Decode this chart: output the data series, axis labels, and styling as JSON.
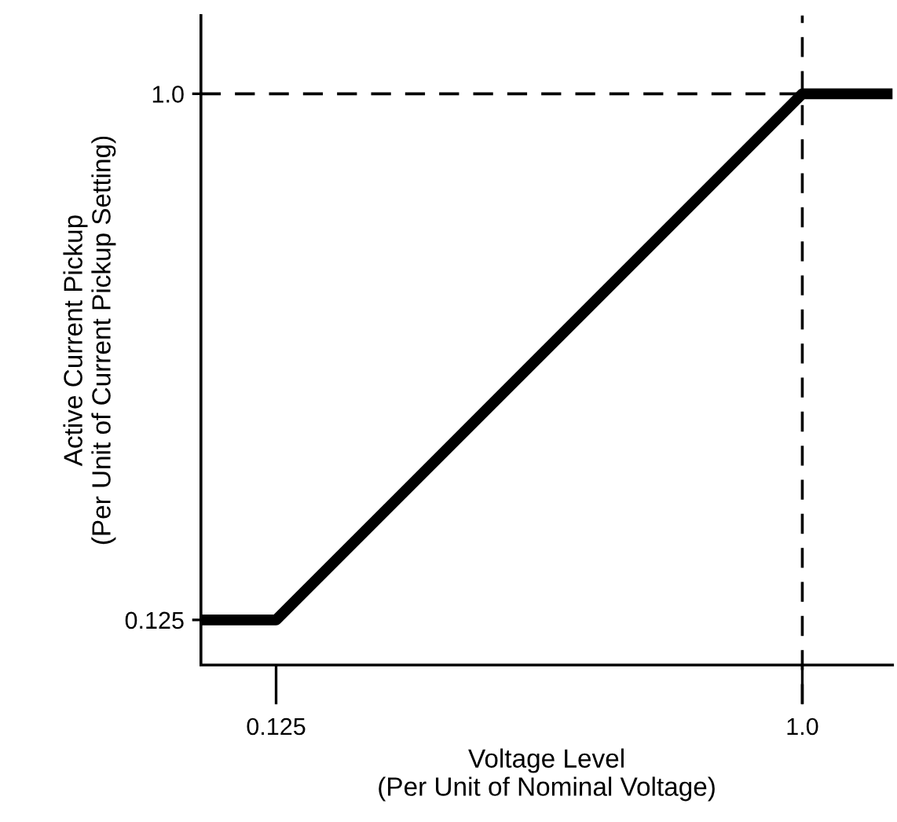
{
  "chart_data": {
    "type": "line",
    "xlabel": "Voltage Level\n(Per Unit of Nominal Voltage)",
    "ylabel": "Active Current Pickup\n(Per Unit of Current Pickup Setting)",
    "x": [
      0,
      0.125,
      1.0,
      1.15
    ],
    "series": [
      {
        "color": "#000000",
        "values": [
          0.125,
          0.125,
          1.0,
          1.0
        ]
      },
      {
        "type": "line",
        "x": [
          0,
          1.0
        ],
        "values": [
          1.0,
          1.0
        ],
        "color": "#000000",
        "line_style": "dashed"
      }
    ],
    "xlim": [
      0,
      1.15
    ],
    "ylim": [
      0.05,
      1.13
    ],
    "xticks": [
      0.125,
      {
        "value": 1,
        "label": "1.0"
      }
    ],
    "yticks": [
      0.125,
      {
        "value": 1,
        "label": "1.0"
      }
    ],
    "ref_lines": [
      {
        "axis": "x",
        "value": 1.0,
        "color": "#000000",
        "line_style": "dashed"
      }
    ],
    "grid": false,
    "marker": "none",
    "line_style": "solid",
    "legend": false
  }
}
